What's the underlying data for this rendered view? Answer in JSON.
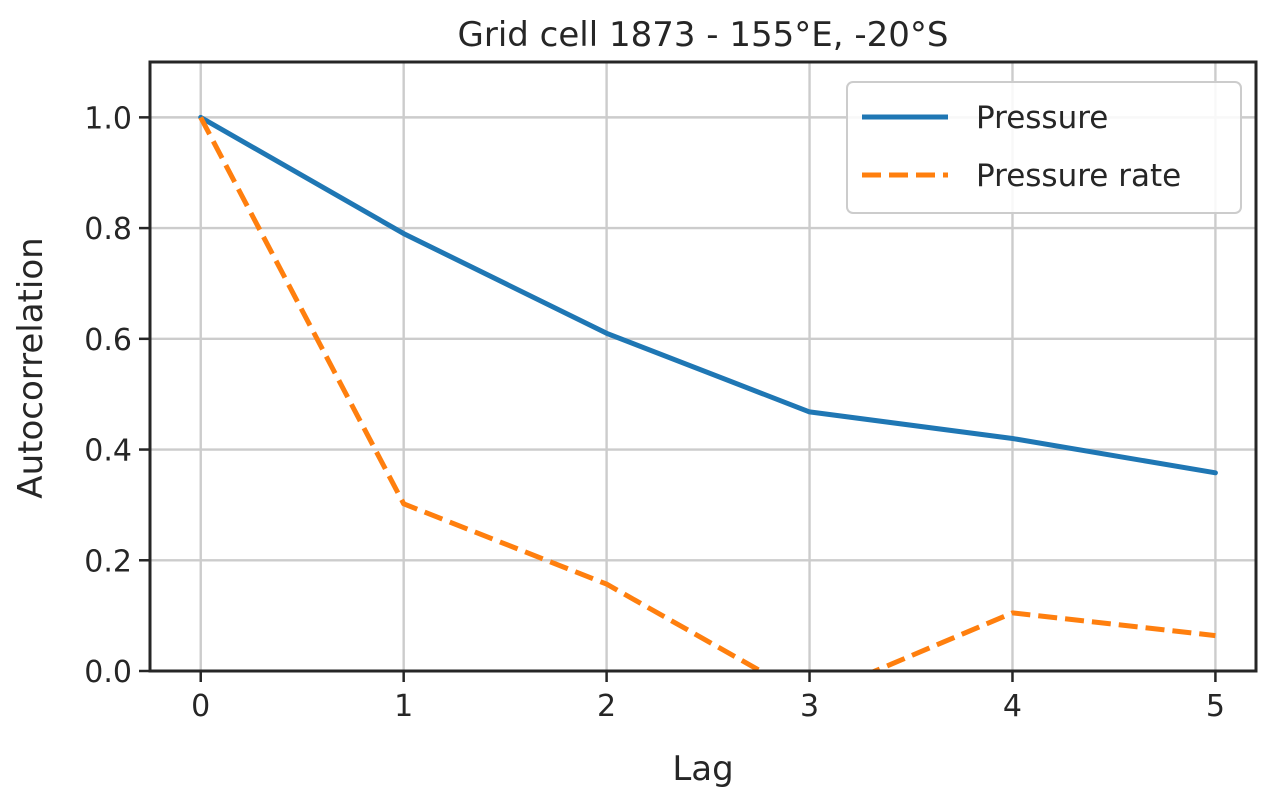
{
  "chart_data": {
    "type": "line",
    "title": "Grid cell 1873 - 155°E, -20°S",
    "xlabel": "Lag",
    "ylabel": "Autocorrelation",
    "x": [
      0,
      1,
      2,
      3,
      4,
      5
    ],
    "xticks": [
      "0",
      "1",
      "2",
      "3",
      "4",
      "5"
    ],
    "yticks": [
      "0.0",
      "0.2",
      "0.4",
      "0.6",
      "0.8",
      "1.0"
    ],
    "xlim": [
      -0.25,
      5.2
    ],
    "ylim": [
      0.0,
      1.1
    ],
    "grid": true,
    "legend_position": "top-right",
    "series": [
      {
        "name": "Pressure",
        "values": [
          1.0,
          0.79,
          0.61,
          0.468,
          0.42,
          0.358
        ],
        "color": "#1f77b4",
        "style": "solid"
      },
      {
        "name": "Pressure rate",
        "values": [
          1.0,
          0.302,
          0.157,
          -0.05,
          0.105,
          0.064
        ],
        "color": "#ff7f0e",
        "style": "dashed"
      }
    ]
  }
}
